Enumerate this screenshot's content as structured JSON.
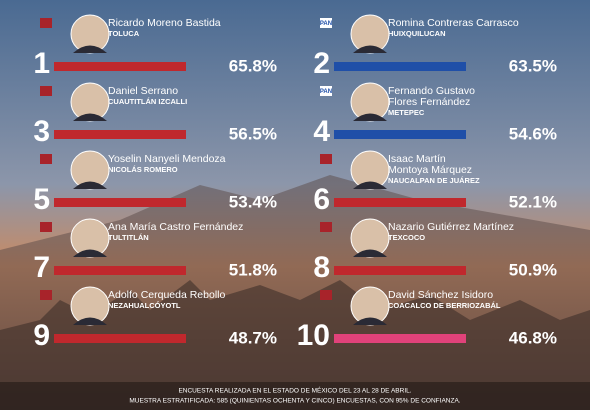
{
  "entries": [
    {
      "rank": "1",
      "name": [
        "Ricardo Moreno Bastida"
      ],
      "municipality": "TOLUCA",
      "percentage": "65.8%",
      "color": "#c0282d"
    },
    {
      "rank": "2",
      "party": "PAN",
      "name": [
        "Romina Contreras Carrasco"
      ],
      "municipality": "HUIXQUILUCAN",
      "percentage": "63.5%",
      "color": "#1f4fa8"
    },
    {
      "rank": "3",
      "name": [
        "Daniel Serrano"
      ],
      "municipality": "CUAUTITLÁN IZCALLI",
      "percentage": "56.5%",
      "color": "#c0282d"
    },
    {
      "rank": "4",
      "party": "PAN",
      "name": [
        "Fernando Gustavo",
        "Flores Fernández"
      ],
      "municipality": "METEPEC",
      "percentage": "54.6%",
      "color": "#1f4fa8"
    },
    {
      "rank": "5",
      "name": [
        "Yoselin Nanyeli Mendoza"
      ],
      "municipality": "NICOLÁS ROMERO",
      "percentage": "53.4%",
      "color": "#c0282d"
    },
    {
      "rank": "6",
      "name": [
        "Isaac Martín",
        "Montoya Márquez"
      ],
      "municipality": "NAUCALPAN DE JUÁREZ",
      "percentage": "52.1%",
      "color": "#c0282d"
    },
    {
      "rank": "7",
      "name": [
        "Ana María Castro Fernández"
      ],
      "municipality": "TULTITLÁN",
      "percentage": "51.8%",
      "color": "#c0282d"
    },
    {
      "rank": "8",
      "name": [
        "Nazario Gutiérrez Martínez"
      ],
      "municipality": "TEXCOCO",
      "percentage": "50.9%",
      "color": "#c0282d"
    },
    {
      "rank": "9",
      "name": [
        "Adolfo Cerqueda Rebollo"
      ],
      "municipality": "NEZAHUALCÓYOTL",
      "percentage": "48.7%",
      "color": "#c0282d"
    },
    {
      "rank": "10",
      "name": [
        "David Sánchez Isidoro"
      ],
      "municipality": "COACALCO DE BERRIOZABÁL",
      "percentage": "46.8%",
      "color": "#e0427a"
    }
  ],
  "footer": [
    "ENCUESTA REALIZADA EN EL ESTADO DE MÉXICO DEL 23 AL 28 DE ABRIL.",
    "MUESTRA ESTRATIFICADA: 585 (QUINIENTAS OCHENTA Y CINCO) ENCUESTAS, CON 95% DE CONFIANZA."
  ]
}
